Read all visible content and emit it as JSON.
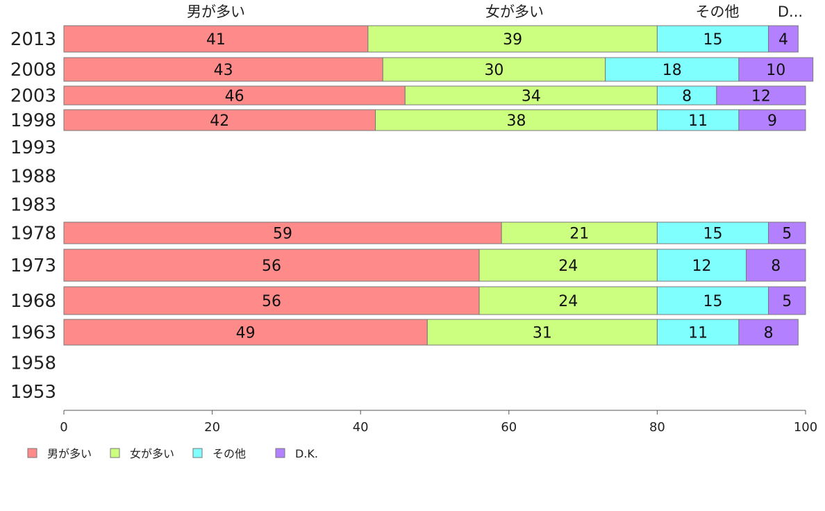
{
  "chart_data": {
    "type": "bar",
    "orientation": "horizontal",
    "stacked": true,
    "xlim": [
      0,
      100
    ],
    "xticks": [
      0,
      20,
      40,
      60,
      80,
      100
    ],
    "categories": [
      "2013",
      "2008",
      "2003",
      "1998",
      "1993",
      "1988",
      "1983",
      "1978",
      "1973",
      "1968",
      "1963",
      "1958",
      "1953"
    ],
    "series": [
      {
        "name": "男が多い",
        "color": "#ff8a8a",
        "values": [
          41,
          43,
          46,
          42,
          null,
          null,
          null,
          59,
          56,
          56,
          49,
          null,
          null
        ]
      },
      {
        "name": "女が多い",
        "color": "#ccff80",
        "values": [
          39,
          30,
          34,
          38,
          null,
          null,
          null,
          21,
          24,
          24,
          31,
          null,
          null
        ]
      },
      {
        "name": "その他",
        "color": "#80ffff",
        "values": [
          15,
          18,
          8,
          11,
          null,
          null,
          null,
          15,
          12,
          15,
          11,
          null,
          null
        ]
      },
      {
        "name": "D.K.",
        "color": "#b380ff",
        "values": [
          4,
          10,
          12,
          9,
          null,
          null,
          null,
          5,
          8,
          5,
          8,
          null,
          null
        ]
      }
    ],
    "top_headers": [
      "男が多い",
      "女が多い",
      "その他",
      "D..."
    ],
    "legend_position": "bottom-left",
    "grid": false
  }
}
